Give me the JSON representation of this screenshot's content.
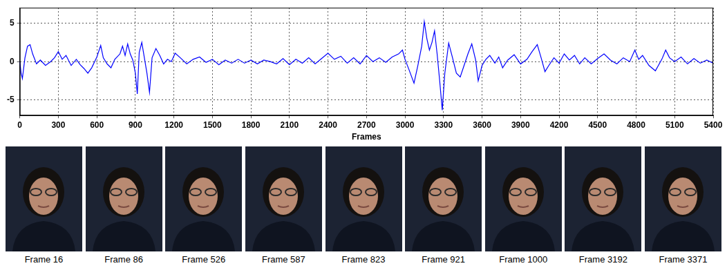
{
  "chart_data": {
    "type": "line",
    "x_label": "Frames",
    "xlim": [
      0,
      5400
    ],
    "xticks": [
      0,
      300,
      600,
      900,
      1200,
      1500,
      1800,
      2100,
      2400,
      2700,
      3000,
      3300,
      3600,
      3900,
      4200,
      4500,
      4800,
      5100,
      5400
    ],
    "ylim": [
      -7,
      7
    ],
    "yticks": [
      -5,
      0,
      5
    ],
    "grid": true,
    "color": "#0000ff",
    "x": [
      0,
      10,
      20,
      40,
      60,
      80,
      100,
      130,
      160,
      200,
      240,
      270,
      300,
      330,
      360,
      400,
      440,
      470,
      500,
      530,
      560,
      600,
      630,
      650,
      680,
      710,
      740,
      780,
      800,
      820,
      840,
      860,
      880,
      900,
      915,
      930,
      950,
      970,
      990,
      1010,
      1030,
      1060,
      1090,
      1120,
      1150,
      1180,
      1210,
      1250,
      1300,
      1350,
      1400,
      1450,
      1500,
      1550,
      1600,
      1650,
      1700,
      1750,
      1800,
      1850,
      1900,
      1950,
      2000,
      2050,
      2100,
      2150,
      2200,
      2250,
      2300,
      2350,
      2400,
      2450,
      2500,
      2550,
      2600,
      2650,
      2700,
      2750,
      2800,
      2850,
      2900,
      2950,
      2980,
      3000,
      3030,
      3070,
      3100,
      3130,
      3150,
      3170,
      3190,
      3210,
      3230,
      3250,
      3270,
      3290,
      3310,
      3340,
      3370,
      3400,
      3430,
      3460,
      3490,
      3520,
      3550,
      3570,
      3600,
      3630,
      3660,
      3700,
      3730,
      3760,
      3800,
      3850,
      3900,
      3950,
      3990,
      4030,
      4060,
      4090,
      4120,
      4160,
      4200,
      4240,
      4280,
      4320,
      4360,
      4400,
      4450,
      4500,
      4550,
      4600,
      4650,
      4700,
      4750,
      4790,
      4820,
      4850,
      4900,
      4950,
      5000,
      5030,
      5060,
      5100,
      5150,
      5200,
      5250,
      5300,
      5350,
      5400
    ],
    "values": [
      0,
      -1.5,
      -2.2,
      0.5,
      2.0,
      2.2,
      1.0,
      -0.3,
      0.2,
      -0.5,
      0,
      0.5,
      1.3,
      0.3,
      0.8,
      -0.5,
      0.3,
      -0.4,
      -0.9,
      -1.5,
      -0.8,
      0.6,
      2.1,
      0.5,
      -0.3,
      -0.8,
      0.3,
      1.0,
      2.0,
      0.8,
      2.3,
      1.0,
      0.2,
      -1.5,
      -4.2,
      1.2,
      2.5,
      0.5,
      -1.5,
      -4.0,
      0.5,
      1.7,
      0.8,
      -0.3,
      0.3,
      0.0,
      1.1,
      0.5,
      -0.3,
      0.3,
      0.6,
      -0.1,
      0.3,
      -0.4,
      0.2,
      -0.2,
      0.3,
      -0.2,
      0.2,
      -0.3,
      0.2,
      0.0,
      -0.3,
      0.4,
      -0.4,
      0.3,
      -0.2,
      0.5,
      -0.3,
      0.4,
      1.1,
      0.3,
      0.7,
      -0.2,
      0.5,
      -0.3,
      0.8,
      0.0,
      0.5,
      -0.1,
      0.6,
      1.0,
      1.5,
      0.3,
      -1.0,
      -2.8,
      -0.5,
      2.0,
      5.2,
      3.0,
      1.5,
      2.5,
      4.0,
      1.0,
      -2.5,
      -6.3,
      -1.5,
      2.4,
      0.5,
      -1.5,
      -2.0,
      -0.5,
      1.0,
      2.3,
      0.2,
      -2.5,
      -0.5,
      0.3,
      0.8,
      -0.2,
      0.6,
      -0.8,
      0.2,
      0.9,
      -0.3,
      0.3,
      1.3,
      2.2,
      0.5,
      -1.3,
      -0.5,
      0.5,
      -0.2,
      1.0,
      0.2,
      0.8,
      -0.3,
      0.5,
      -0.3,
      0.4,
      1.0,
      0.2,
      -0.3,
      0.5,
      0.0,
      1.5,
      0.3,
      0.8,
      -0.5,
      -1.2,
      0.3,
      1.5,
      0.5,
      0.0,
      0.6,
      -0.3,
      0.4,
      -0.2,
      0.2,
      -0.2
    ]
  },
  "frames": [
    "Frame 16",
    "Frame 86",
    "Frame 526",
    "Frame 587",
    "Frame 823",
    "Frame 921",
    "Frame 1000",
    "Frame 3192",
    "Frame 3371"
  ]
}
